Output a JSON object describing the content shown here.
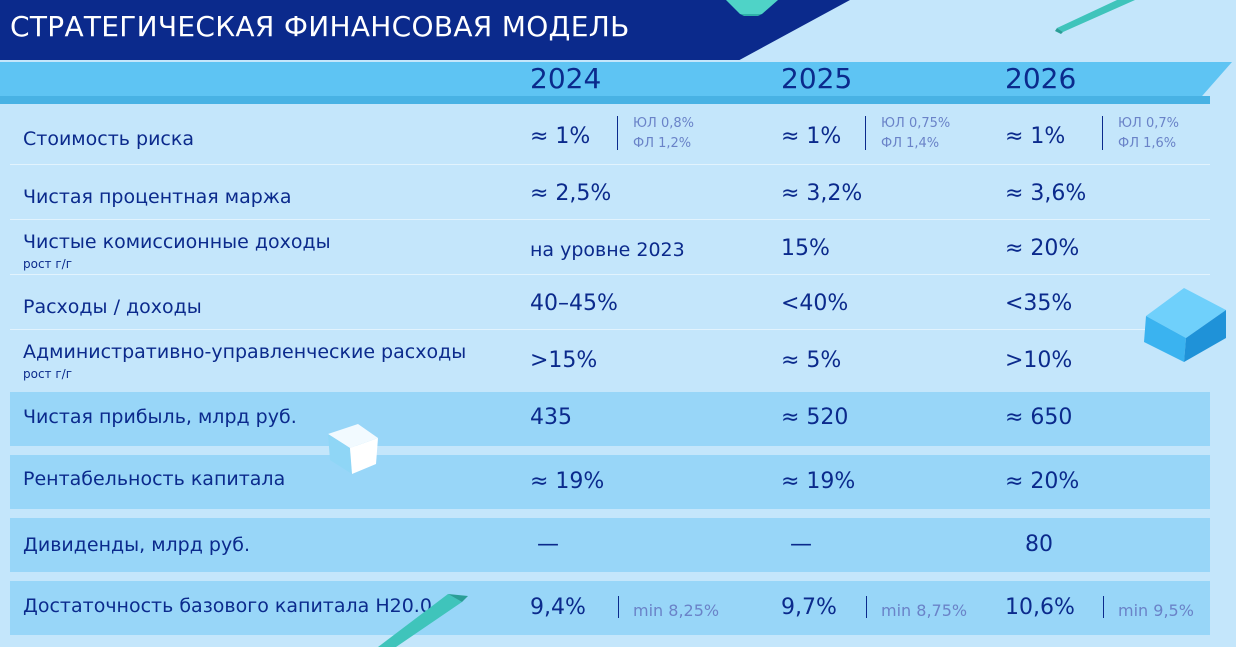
{
  "page_title": "СТРАТЕГИЧЕСКАЯ ФИНАНСОВАЯ МОДЕЛЬ",
  "years": [
    "2024",
    "2025",
    "2026"
  ],
  "rows": [
    {
      "label": "Стоимость риска",
      "sub": "",
      "values": [
        "≈ 1%",
        "≈ 1%",
        "≈ 1%"
      ],
      "notes": [
        [
          "ЮЛ 0,8%",
          "ФЛ 1,2%"
        ],
        [
          "ЮЛ 0,75%",
          "ФЛ 1,4%"
        ],
        [
          "ЮЛ 0,7%",
          "ФЛ 1,6%"
        ]
      ]
    },
    {
      "label": "Чистая процентная маржа",
      "sub": "",
      "values": [
        "≈ 2,5%",
        "≈ 3,2%",
        "≈ 3,6%"
      ]
    },
    {
      "label": "Чистые комиссионные доходы",
      "sub": "рост г/г",
      "values": [
        "на уровне 2023",
        "15%",
        "≈ 20%"
      ]
    },
    {
      "label": "Расходы / доходы",
      "sub": "",
      "values": [
        "40–45%",
        "<40%",
        "<35%"
      ]
    },
    {
      "label": "Административно-управленческие расходы",
      "sub": "рост г/г",
      "values": [
        ">15%",
        "≈ 5%",
        ">10%"
      ]
    },
    {
      "label": "Чистая прибыль, млрд руб.",
      "sub": "",
      "values": [
        "435",
        "≈ 520",
        "≈ 650"
      ]
    },
    {
      "label": "Рентабельность капитала",
      "sub": "",
      "values": [
        "≈ 19%",
        "≈ 19%",
        "≈ 20%"
      ]
    },
    {
      "label": "Дивиденды, млрд руб.",
      "sub": "",
      "values": [
        "—",
        "—",
        "80"
      ]
    },
    {
      "label": "Достаточность базового капитала Н20.0",
      "sub": "",
      "values": [
        "9,4%",
        "9,7%",
        "10,6%"
      ],
      "mins": [
        "min 8,25%",
        "min 8,75%",
        "min 9,5%"
      ]
    }
  ],
  "colors": {
    "title_bg": "#0b2a8c",
    "year_band": "#5ec4f3",
    "light_row": "#c4e6fb",
    "dark_row": "#98d6f8",
    "text": "#0b2a8c",
    "note": "#6a83c8"
  }
}
